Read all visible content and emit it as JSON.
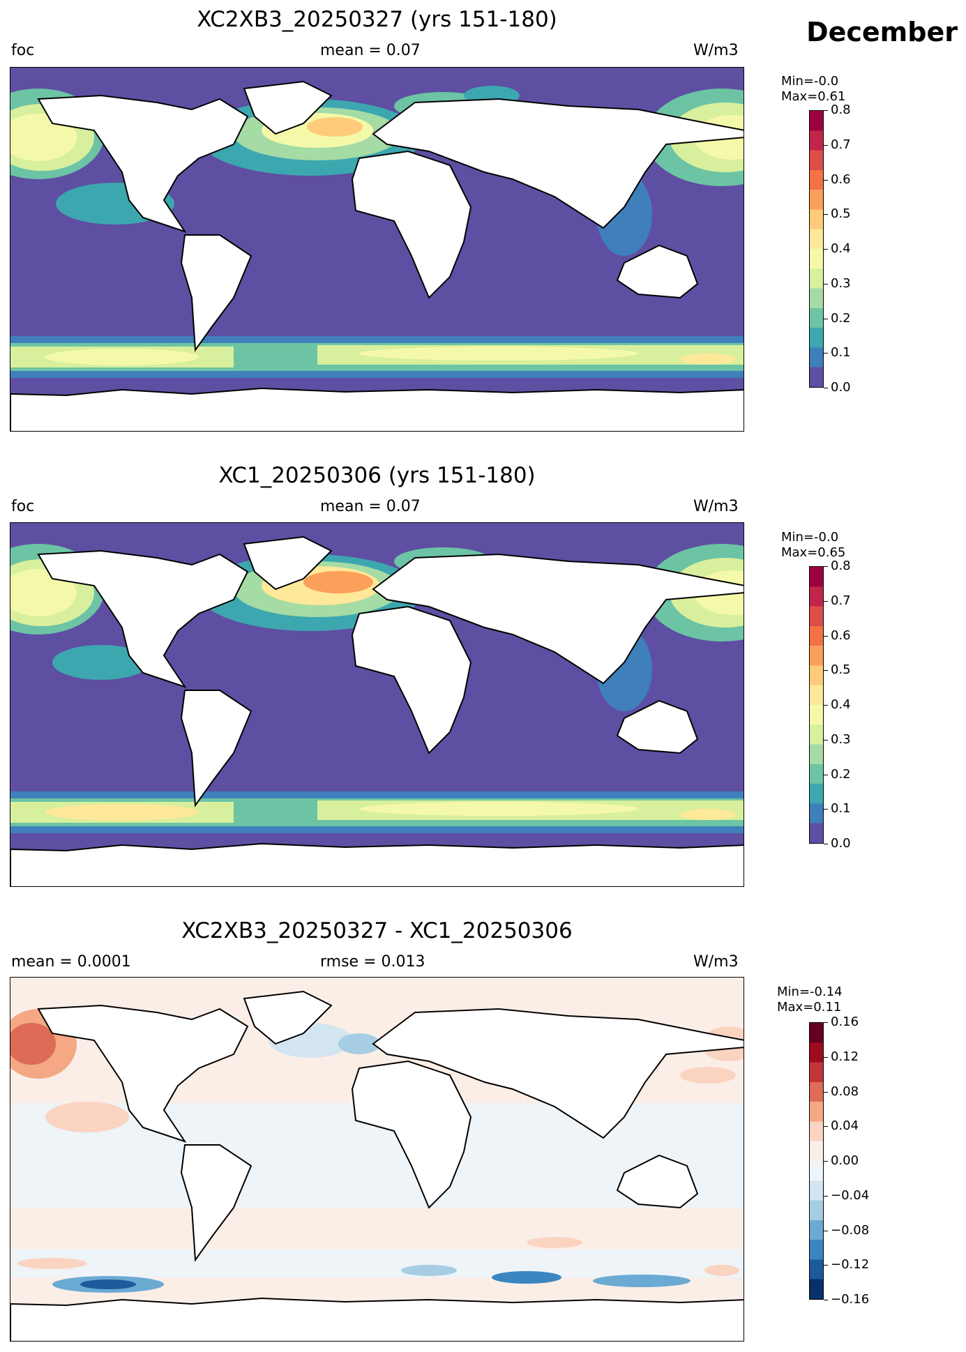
{
  "month_label": "December",
  "panels": [
    {
      "title": "XC2XB3_20250327 (yrs 151-180)",
      "left_label": "foc",
      "center_label": "mean = 0.07",
      "right_label": "W/m3",
      "min_label": "Min=-0.0",
      "max_label": "Max=0.61",
      "colorbar": {
        "colormap": "Spectral_r",
        "ticks": [
          "0.0",
          "0.1",
          "0.2",
          "0.3",
          "0.4",
          "0.5",
          "0.6",
          "0.7",
          "0.8"
        ],
        "colors": [
          "#5e4fa2",
          "#3f7fbb",
          "#3da7b0",
          "#6cc4a4",
          "#a5dba4",
          "#d8ef9d",
          "#f4f9a9",
          "#fee89a",
          "#fdcb79",
          "#fba05b",
          "#f47346",
          "#de4d4a",
          "#c1264a",
          "#9e0142"
        ]
      }
    },
    {
      "title": "XC1_20250306 (yrs 151-180)",
      "left_label": "foc",
      "center_label": "mean = 0.07",
      "right_label": "W/m3",
      "min_label": "Min=-0.0",
      "max_label": "Max=0.65",
      "colorbar": {
        "colormap": "Spectral_r",
        "ticks": [
          "0.0",
          "0.1",
          "0.2",
          "0.3",
          "0.4",
          "0.5",
          "0.6",
          "0.7",
          "0.8"
        ],
        "colors": [
          "#5e4fa2",
          "#3f7fbb",
          "#3da7b0",
          "#6cc4a4",
          "#a5dba4",
          "#d8ef9d",
          "#f4f9a9",
          "#fee89a",
          "#fdcb79",
          "#fba05b",
          "#f47346",
          "#de4d4a",
          "#c1264a",
          "#9e0142"
        ]
      }
    },
    {
      "title": "XC2XB3_20250327 - XC1_20250306",
      "left_label": "mean = 0.0001",
      "center_label": "rmse = 0.013",
      "right_label": "W/m3",
      "min_label": "Min=-0.14",
      "max_label": "Max=0.11",
      "colorbar": {
        "colormap": "RdBu_r",
        "ticks": [
          "−0.16",
          "−0.12",
          "−0.08",
          "−0.04",
          "0.00",
          "0.04",
          "0.08",
          "0.12",
          "0.16"
        ],
        "colors": [
          "#08306b",
          "#1c5a9c",
          "#3a86c1",
          "#6aaad3",
          "#a6cde3",
          "#d2e5f0",
          "#eef4f8",
          "#fbeee7",
          "#fad4c1",
          "#f4a884",
          "#dd6b56",
          "#c23639",
          "#9e0b21",
          "#67001f"
        ]
      }
    }
  ]
}
